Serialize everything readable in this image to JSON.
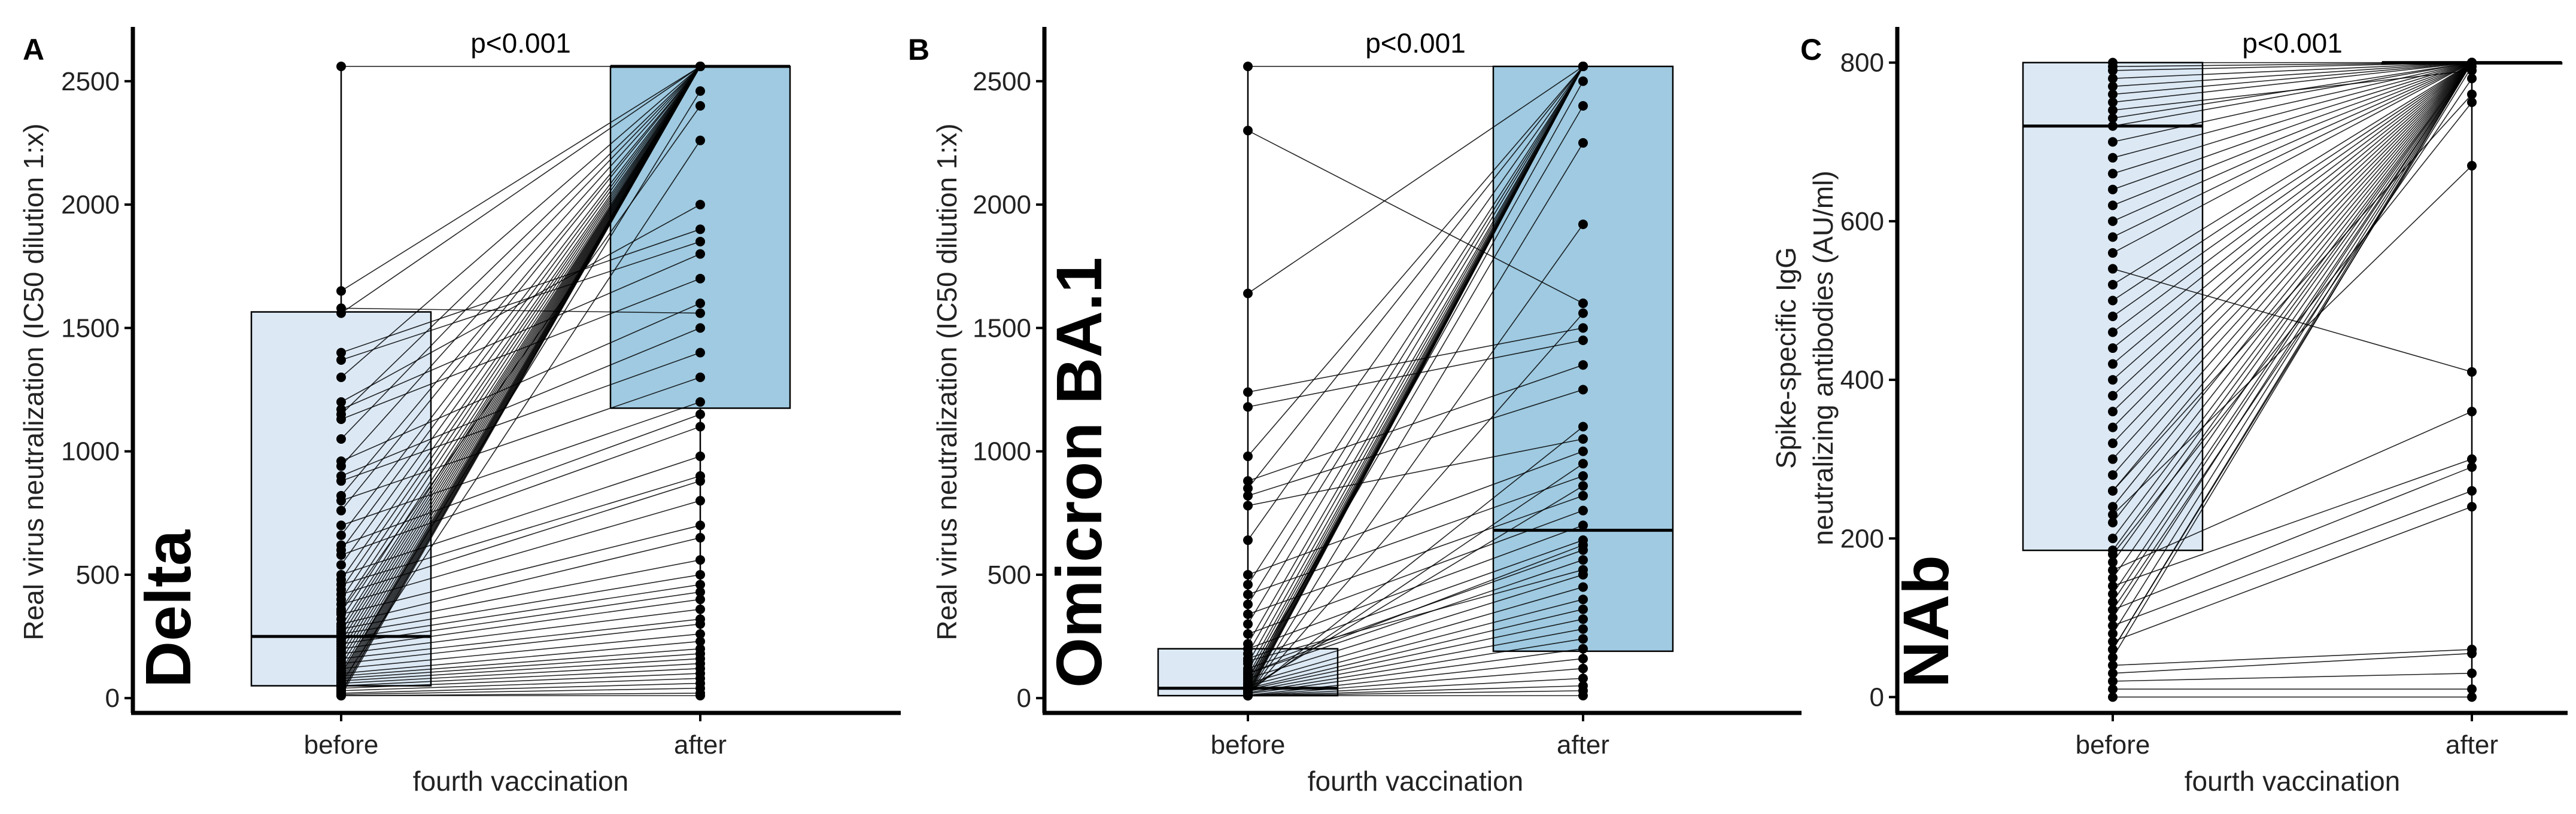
{
  "x_title": "fourth vaccination",
  "categories": [
    "before",
    "after"
  ],
  "chart_data": [
    {
      "id": "A",
      "letter": "A",
      "type": "paired-box-scatter",
      "title": "Delta",
      "ylabel": "Real virus neutralization (IC50 dilution 1:x)",
      "ylim": [
        -60,
        2720
      ],
      "yticks": [
        0,
        500,
        1000,
        1500,
        2000,
        2500
      ],
      "p_value": "p<0.001",
      "categories": [
        "before",
        "after"
      ],
      "box_colors": [
        "#dce9f5",
        "#9fcae1"
      ],
      "boxes": [
        {
          "category": "before",
          "q1": 50,
          "median": 250,
          "q3": 1565,
          "min": 10,
          "max": 2560
        },
        {
          "category": "after",
          "q1": 1175,
          "median": 2560,
          "q3": 2560,
          "min": 10,
          "max": 2560
        }
      ],
      "pairs": [
        [
          2560,
          2560
        ],
        [
          1650,
          2560
        ],
        [
          1580,
          1560
        ],
        [
          1560,
          2560
        ],
        [
          1400,
          1900
        ],
        [
          1370,
          1850
        ],
        [
          1300,
          2560
        ],
        [
          1200,
          2000
        ],
        [
          1170,
          1800
        ],
        [
          1150,
          2560
        ],
        [
          1130,
          1700
        ],
        [
          1050,
          2560
        ],
        [
          960,
          1600
        ],
        [
          940,
          2560
        ],
        [
          900,
          1500
        ],
        [
          880,
          1400
        ],
        [
          820,
          2560
        ],
        [
          800,
          1300
        ],
        [
          760,
          2560
        ],
        [
          700,
          1200
        ],
        [
          660,
          2560
        ],
        [
          620,
          1150
        ],
        [
          600,
          2560
        ],
        [
          580,
          1100
        ],
        [
          540,
          2560
        ],
        [
          500,
          980
        ],
        [
          480,
          2560
        ],
        [
          460,
          900
        ],
        [
          440,
          2560
        ],
        [
          420,
          880
        ],
        [
          400,
          2560
        ],
        [
          380,
          800
        ],
        [
          360,
          2560
        ],
        [
          340,
          700
        ],
        [
          320,
          2560
        ],
        [
          300,
          650
        ],
        [
          290,
          2560
        ],
        [
          280,
          560
        ],
        [
          270,
          2560
        ],
        [
          260,
          500
        ],
        [
          250,
          2560
        ],
        [
          240,
          460
        ],
        [
          230,
          2560
        ],
        [
          220,
          430
        ],
        [
          210,
          2560
        ],
        [
          200,
          400
        ],
        [
          190,
          2560
        ],
        [
          180,
          360
        ],
        [
          170,
          2560
        ],
        [
          160,
          320
        ],
        [
          150,
          2560
        ],
        [
          140,
          300
        ],
        [
          130,
          2560
        ],
        [
          120,
          260
        ],
        [
          110,
          2560
        ],
        [
          100,
          230
        ],
        [
          95,
          2560
        ],
        [
          90,
          200
        ],
        [
          85,
          2560
        ],
        [
          80,
          180
        ],
        [
          75,
          2560
        ],
        [
          70,
          160
        ],
        [
          65,
          2560
        ],
        [
          60,
          140
        ],
        [
          55,
          2560
        ],
        [
          50,
          120
        ],
        [
          45,
          2560
        ],
        [
          40,
          100
        ],
        [
          35,
          2560
        ],
        [
          30,
          80
        ],
        [
          25,
          2560
        ],
        [
          20,
          60
        ],
        [
          20,
          2560
        ],
        [
          15,
          40
        ],
        [
          10,
          2560
        ],
        [
          10,
          20
        ],
        [
          10,
          10
        ],
        [
          60,
          2260
        ],
        [
          100,
          2460
        ],
        [
          350,
          2400
        ]
      ]
    },
    {
      "id": "B",
      "letter": "B",
      "type": "paired-box-scatter",
      "title": "Omicron BA.1",
      "ylabel": "Real virus neutralization (IC50 dilution 1:x)",
      "ylim": [
        -60,
        2720
      ],
      "yticks": [
        0,
        500,
        1000,
        1500,
        2000,
        2500
      ],
      "p_value": "p<0.001",
      "categories": [
        "before",
        "after"
      ],
      "box_colors": [
        "#dce9f5",
        "#9fcae1"
      ],
      "boxes": [
        {
          "category": "before",
          "q1": 10,
          "median": 40,
          "q3": 200,
          "min": 10,
          "max": 2560
        },
        {
          "category": "after",
          "q1": 190,
          "median": 680,
          "q3": 2560,
          "min": 10,
          "max": 2560
        }
      ],
      "pairs": [
        [
          2560,
          2560
        ],
        [
          2300,
          1600
        ],
        [
          1640,
          2560
        ],
        [
          1240,
          1500
        ],
        [
          1180,
          1450
        ],
        [
          980,
          2560
        ],
        [
          880,
          1350
        ],
        [
          850,
          2560
        ],
        [
          820,
          1250
        ],
        [
          780,
          1050
        ],
        [
          640,
          2560
        ],
        [
          500,
          1000
        ],
        [
          460,
          2560
        ],
        [
          420,
          900
        ],
        [
          380,
          2560
        ],
        [
          340,
          820
        ],
        [
          300,
          2560
        ],
        [
          260,
          760
        ],
        [
          220,
          2560
        ],
        [
          200,
          700
        ],
        [
          180,
          2560
        ],
        [
          160,
          640
        ],
        [
          140,
          2560
        ],
        [
          120,
          600
        ],
        [
          110,
          2560
        ],
        [
          100,
          560
        ],
        [
          90,
          2560
        ],
        [
          80,
          500
        ],
        [
          70,
          2560
        ],
        [
          60,
          450
        ],
        [
          55,
          2560
        ],
        [
          50,
          400
        ],
        [
          45,
          2560
        ],
        [
          40,
          360
        ],
        [
          38,
          2560
        ],
        [
          35,
          320
        ],
        [
          30,
          2560
        ],
        [
          28,
          280
        ],
        [
          25,
          2560
        ],
        [
          22,
          240
        ],
        [
          20,
          2560
        ],
        [
          18,
          200
        ],
        [
          15,
          2560
        ],
        [
          12,
          160
        ],
        [
          10,
          2560
        ],
        [
          10,
          120
        ],
        [
          10,
          80
        ],
        [
          10,
          50
        ],
        [
          10,
          30
        ],
        [
          10,
          10
        ],
        [
          10,
          2250
        ],
        [
          10,
          1920
        ],
        [
          10,
          1560
        ],
        [
          20,
          1100
        ],
        [
          30,
          950
        ],
        [
          40,
          860
        ],
        [
          60,
          2500
        ],
        [
          80,
          2400
        ],
        [
          100,
          620
        ],
        [
          150,
          520
        ]
      ]
    },
    {
      "id": "C",
      "letter": "C",
      "type": "paired-box-scatter",
      "title": "NAb",
      "ylabel": "Spike-specific IgG neutralizing antibodies (AU/ml)",
      "ylabel_lines": [
        "Spike-specific IgG",
        "neutralizing antibodies (AU/ml)"
      ],
      "ylim": [
        -20,
        845
      ],
      "yticks": [
        0,
        200,
        400,
        600,
        800
      ],
      "p_value": "p<0.001",
      "categories": [
        "before",
        "after"
      ],
      "box_colors": [
        "#dce9f5",
        "#dce9f5"
      ],
      "boxes": [
        {
          "category": "before",
          "q1": 185,
          "median": 720,
          "q3": 800,
          "min": 0,
          "max": 800
        },
        {
          "category": "after",
          "q1": 800,
          "median": 800,
          "q3": 800,
          "min": 0,
          "max": 800
        }
      ],
      "pairs": [
        [
          800,
          800
        ],
        [
          795,
          800
        ],
        [
          790,
          800
        ],
        [
          780,
          800
        ],
        [
          770,
          800
        ],
        [
          760,
          800
        ],
        [
          750,
          800
        ],
        [
          740,
          790
        ],
        [
          730,
          800
        ],
        [
          720,
          800
        ],
        [
          700,
          800
        ],
        [
          680,
          800
        ],
        [
          660,
          800
        ],
        [
          640,
          800
        ],
        [
          620,
          800
        ],
        [
          600,
          800
        ],
        [
          580,
          800
        ],
        [
          560,
          800
        ],
        [
          540,
          410
        ],
        [
          520,
          800
        ],
        [
          500,
          800
        ],
        [
          480,
          800
        ],
        [
          460,
          800
        ],
        [
          440,
          800
        ],
        [
          420,
          800
        ],
        [
          400,
          800
        ],
        [
          380,
          800
        ],
        [
          360,
          800
        ],
        [
          340,
          800
        ],
        [
          320,
          800
        ],
        [
          300,
          800
        ],
        [
          280,
          800
        ],
        [
          260,
          800
        ],
        [
          240,
          800
        ],
        [
          220,
          800
        ],
        [
          200,
          800
        ],
        [
          185,
          800
        ],
        [
          170,
          800
        ],
        [
          160,
          360
        ],
        [
          150,
          800
        ],
        [
          140,
          300
        ],
        [
          130,
          800
        ],
        [
          120,
          800
        ],
        [
          110,
          290
        ],
        [
          100,
          800
        ],
        [
          90,
          260
        ],
        [
          80,
          800
        ],
        [
          70,
          240
        ],
        [
          60,
          800
        ],
        [
          50,
          800
        ],
        [
          40,
          60
        ],
        [
          30,
          55
        ],
        [
          20,
          30
        ],
        [
          10,
          10
        ],
        [
          0,
          0
        ],
        [
          230,
          670
        ],
        [
          260,
          760
        ],
        [
          180,
          750
        ],
        [
          110,
          780
        ],
        [
          60,
          795
        ]
      ]
    }
  ]
}
